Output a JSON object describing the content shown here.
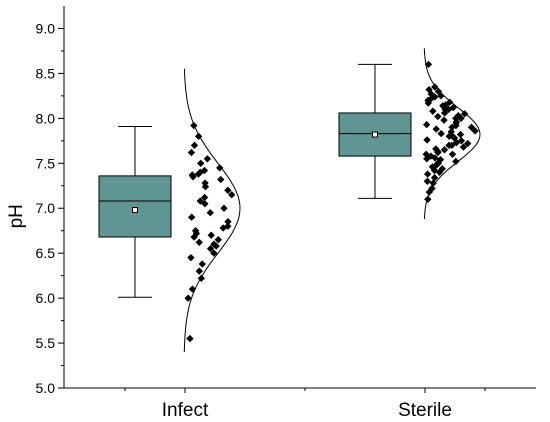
{
  "chart_data": {
    "type": "box",
    "title": "",
    "xlabel": "",
    "ylabel": "pH",
    "ylim": [
      5.0,
      9.25
    ],
    "yticks": [
      "5.0",
      "5.5",
      "6.0",
      "6.5",
      "7.0",
      "7.5",
      "8.0",
      "8.5",
      "9.0"
    ],
    "grid": false,
    "legend": "none",
    "box_color": "#5f9694",
    "point_color": "#000000",
    "categories": [
      "Infect",
      "Sterile"
    ],
    "series": [
      {
        "category": "Infect",
        "box": {
          "whisker_low": 6.01,
          "q1": 6.68,
          "median": 7.08,
          "q3": 7.36,
          "whisker_high": 7.91,
          "mean": 6.98
        },
        "distribution": {
          "mean": 7.0,
          "sd": 0.5,
          "range": [
            5.4,
            8.55
          ]
        },
        "points": [
          5.55,
          6.0,
          6.1,
          6.22,
          6.3,
          6.38,
          6.45,
          6.5,
          6.55,
          6.58,
          6.6,
          6.62,
          6.65,
          6.68,
          6.7,
          6.72,
          6.75,
          6.78,
          6.8,
          6.85,
          6.9,
          6.95,
          7.0,
          7.05,
          7.08,
          7.12,
          7.15,
          7.2,
          7.24,
          7.28,
          7.32,
          7.35,
          7.37,
          7.38,
          7.4,
          7.42,
          7.45,
          7.5,
          7.55,
          7.62,
          7.7,
          7.8,
          7.92
        ]
      },
      {
        "category": "Sterile",
        "box": {
          "whisker_low": 7.11,
          "q1": 7.58,
          "median": 7.83,
          "q3": 8.06,
          "whisker_high": 8.6,
          "mean": 7.82
        },
        "distribution": {
          "mean": 7.82,
          "sd": 0.3,
          "range": [
            6.88,
            8.78
          ]
        },
        "points": [
          7.1,
          7.18,
          7.22,
          7.28,
          7.3,
          7.34,
          7.38,
          7.4,
          7.42,
          7.44,
          7.46,
          7.48,
          7.5,
          7.5,
          7.52,
          7.54,
          7.55,
          7.56,
          7.58,
          7.6,
          7.6,
          7.62,
          7.63,
          7.65,
          7.66,
          7.68,
          7.7,
          7.7,
          7.72,
          7.73,
          7.75,
          7.76,
          7.78,
          7.8,
          7.8,
          7.82,
          7.83,
          7.85,
          7.86,
          7.88,
          7.9,
          7.9,
          7.92,
          7.93,
          7.95,
          7.96,
          7.98,
          8.0,
          8.0,
          8.02,
          8.03,
          8.05,
          8.06,
          8.08,
          8.1,
          8.1,
          8.12,
          8.14,
          8.15,
          8.17,
          8.18,
          8.2,
          8.22,
          8.24,
          8.25,
          8.27,
          8.3,
          8.32,
          8.35,
          8.6
        ]
      }
    ]
  }
}
